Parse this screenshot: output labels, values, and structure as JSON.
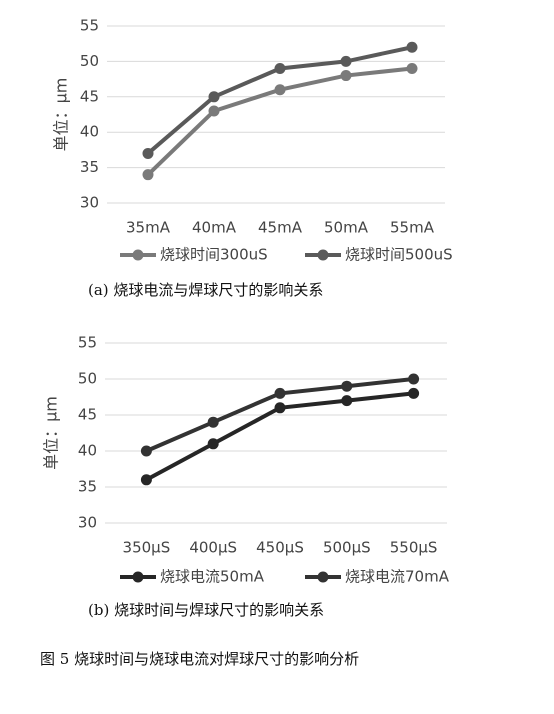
{
  "chart_data": [
    {
      "type": "line",
      "ylabel": "单位：μm",
      "categories": [
        "35mA",
        "40mA",
        "45mA",
        "50mA",
        "55mA"
      ],
      "series": [
        {
          "name": "烧球时间300uS",
          "color": "#7a7a7a",
          "values": [
            34,
            43,
            46,
            48,
            49
          ]
        },
        {
          "name": "烧球时间500uS",
          "color": "#5a5a5a",
          "values": [
            37,
            45,
            49,
            50,
            52
          ]
        }
      ],
      "ylim": [
        30,
        55
      ],
      "yticks": [
        30,
        35,
        40,
        45,
        50,
        55
      ],
      "grid": true,
      "caption": "(a) 烧球电流与焊球尺寸的影响关系"
    },
    {
      "type": "line",
      "ylabel": "单位：μm",
      "categories": [
        "350μS",
        "400μS",
        "450μS",
        "500μS",
        "550μS"
      ],
      "series": [
        {
          "name": "烧球电流50mA",
          "color": "#262626",
          "values": [
            36,
            41,
            46,
            47,
            48
          ]
        },
        {
          "name": "烧球电流70mA",
          "color": "#333333",
          "values": [
            40,
            44,
            48,
            49,
            50
          ]
        }
      ],
      "ylim": [
        30,
        55
      ],
      "yticks": [
        30,
        35,
        40,
        45,
        50,
        55
      ],
      "grid": true,
      "caption": "(b) 烧球时间与焊球尺寸的影响关系"
    }
  ],
  "figure_caption": "图 5 烧球时间与烧球电流对焊球尺寸的影响分析"
}
